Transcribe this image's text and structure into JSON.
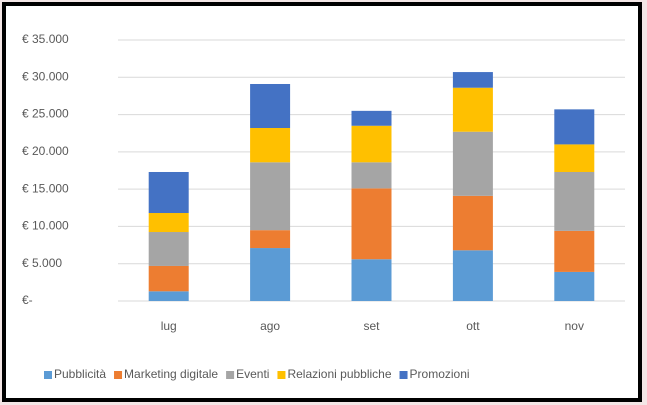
{
  "chart_data": {
    "type": "stacked_bar",
    "categories": [
      "lug",
      "ago",
      "set",
      "ott",
      "nov"
    ],
    "series": [
      {
        "name": "Pubblicità",
        "color": "#5b9bd5",
        "values": [
          1300,
          7100,
          5600,
          6800,
          3900
        ]
      },
      {
        "name": "Marketing digitale",
        "color": "#ed7d31",
        "values": [
          3400,
          2400,
          9500,
          7300,
          5500
        ]
      },
      {
        "name": "Eventi",
        "color": "#a5a5a5",
        "values": [
          4550,
          9100,
          3500,
          8600,
          7900
        ]
      },
      {
        "name": "Relazioni pubbliche",
        "color": "#ffc000",
        "values": [
          2550,
          4600,
          4900,
          5900,
          3700
        ]
      },
      {
        "name": "Promozioni",
        "color": "#4472c4",
        "values": [
          5500,
          5900,
          2000,
          2100,
          4700
        ]
      }
    ],
    "ylim": [
      0,
      35000
    ],
    "yticks": [
      {
        "value": 0,
        "label": "€-"
      },
      {
        "value": 5000,
        "label": "€ 5.000"
      },
      {
        "value": 10000,
        "label": "€ 10.000"
      },
      {
        "value": 15000,
        "label": "€ 15.000"
      },
      {
        "value": 20000,
        "label": "€ 20.000"
      },
      {
        "value": 25000,
        "label": "€ 25.000"
      },
      {
        "value": 30000,
        "label": "€ 30.000"
      },
      {
        "value": 35000,
        "label": "€ 35.000"
      }
    ],
    "grid": true,
    "legend": "bottom"
  }
}
